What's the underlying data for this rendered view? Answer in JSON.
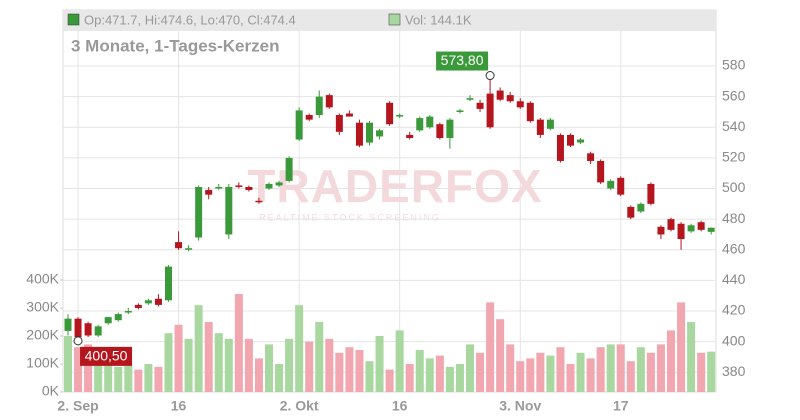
{
  "chart_data": {
    "type": "candlestick",
    "legend": {
      "price": "Op:471.7, Hi:474.6, Lo:470, Cl:474.4",
      "volume": "Vol: 144.1K"
    },
    "subtitle": "3 Monate, 1-Tages-Kerzen",
    "watermark": "TRADERFOX",
    "watermark_sub": "REALTIME STOCK SCREENING",
    "up_color": "#3a9a3a",
    "down_color": "#b5151d",
    "volume_up_color": "#a8d8a0",
    "volume_down_color": "#f2a6b0",
    "categories": [
      null,
      "2. Sep",
      null,
      null,
      null,
      null,
      null,
      null,
      null,
      null,
      null,
      "16",
      null,
      null,
      null,
      null,
      null,
      null,
      null,
      null,
      null,
      null,
      null,
      "2. Okt",
      null,
      null,
      null,
      null,
      null,
      null,
      null,
      null,
      null,
      "16",
      null,
      null,
      null,
      null,
      null,
      null,
      null,
      null,
      null,
      null,
      null,
      "3. Nov",
      null,
      null,
      null,
      null,
      null,
      null,
      null,
      null,
      null,
      "17",
      null,
      null,
      null,
      null,
      null,
      null,
      null,
      null,
      null
    ],
    "open": [
      407,
      415,
      412,
      404,
      412,
      414,
      419,
      424,
      425,
      428,
      427,
      465,
      460,
      468,
      499,
      500,
      470,
      502,
      501,
      492,
      500,
      502,
      505,
      532,
      548,
      548,
      561,
      548,
      549,
      543,
      530,
      534,
      556,
      547,
      535,
      538,
      540,
      542,
      533,
      550,
      558,
      556,
      562,
      564,
      561,
      557,
      556,
      545,
      539,
      535,
      535,
      530,
      523,
      518,
      500,
      507,
      488,
      485,
      503,
      475,
      480,
      477,
      472,
      478,
      471.7
    ],
    "high": [
      418,
      416,
      413,
      411,
      416,
      419,
      422,
      425,
      428,
      431,
      450,
      472,
      463,
      502,
      501,
      503,
      503,
      504,
      502,
      494,
      504,
      505,
      521,
      553,
      549,
      564,
      562,
      549,
      551,
      545,
      544,
      539,
      557,
      549,
      537,
      547,
      548,
      543,
      546,
      552,
      561,
      558,
      573.8,
      566,
      563,
      559,
      557,
      546,
      546,
      536,
      536,
      533,
      524,
      519,
      506,
      508,
      489,
      491,
      504,
      476,
      481,
      478,
      477,
      479,
      474.6
    ],
    "low": [
      404,
      400.5,
      403,
      403,
      411,
      413,
      418,
      421,
      424,
      423,
      426,
      460,
      459,
      466,
      493,
      499,
      467,
      500,
      498,
      490,
      499,
      501,
      504,
      531,
      544,
      546,
      552,
      535,
      547,
      527,
      528,
      532,
      541,
      546,
      532,
      537,
      539,
      532,
      526,
      549,
      557,
      550,
      539,
      557,
      556,
      552,
      543,
      533,
      538,
      517,
      527,
      529,
      516,
      503,
      499,
      495,
      480,
      484,
      489,
      467,
      472,
      460,
      471,
      472,
      470
    ],
    "close": [
      415,
      403,
      404,
      410,
      416,
      418,
      420,
      422,
      427,
      424,
      449,
      461,
      461,
      501,
      496,
      501,
      501,
      501,
      499,
      491,
      503,
      504,
      520,
      551,
      545,
      560,
      553,
      537,
      547,
      528,
      543,
      538,
      542,
      548,
      533,
      546,
      547,
      533,
      545,
      551,
      559,
      552,
      540,
      558,
      557,
      553,
      544,
      535,
      545,
      518,
      528,
      532,
      518,
      504,
      505,
      496,
      481,
      490,
      490,
      470,
      473,
      467,
      476,
      473,
      474.4
    ],
    "volume": [
      200000,
      160000,
      170000,
      110000,
      150000,
      90000,
      100000,
      80000,
      100000,
      90000,
      210000,
      240000,
      190000,
      310000,
      250000,
      210000,
      190000,
      350000,
      190000,
      120000,
      170000,
      100000,
      190000,
      310000,
      180000,
      250000,
      190000,
      140000,
      160000,
      150000,
      110000,
      200000,
      80000,
      220000,
      100000,
      150000,
      120000,
      130000,
      90000,
      100000,
      170000,
      140000,
      320000,
      260000,
      170000,
      110000,
      120000,
      140000,
      130000,
      160000,
      100000,
      140000,
      120000,
      160000,
      170000,
      170000,
      110000,
      160000,
      140000,
      170000,
      220000,
      320000,
      250000,
      140000,
      144100
    ],
    "annotations": [
      {
        "label": "573,80",
        "index": 42,
        "value": 573.8
      },
      {
        "label": "400,50",
        "index": 1,
        "value": 400.5
      }
    ],
    "ylim": [
      367.1,
      616.6
    ],
    "yticks": [
      380,
      400,
      420,
      440,
      460,
      480,
      500,
      520,
      540,
      560,
      580
    ],
    "y2lim": [
      0,
      1364000
    ],
    "y2ticks": [
      {
        "value": 0,
        "label": "0K"
      },
      {
        "value": 100000,
        "label": "100K"
      },
      {
        "value": 200000,
        "label": "200K"
      },
      {
        "value": 300000,
        "label": "300K"
      },
      {
        "value": 400000,
        "label": "400K"
      }
    ],
    "grid": true
  }
}
